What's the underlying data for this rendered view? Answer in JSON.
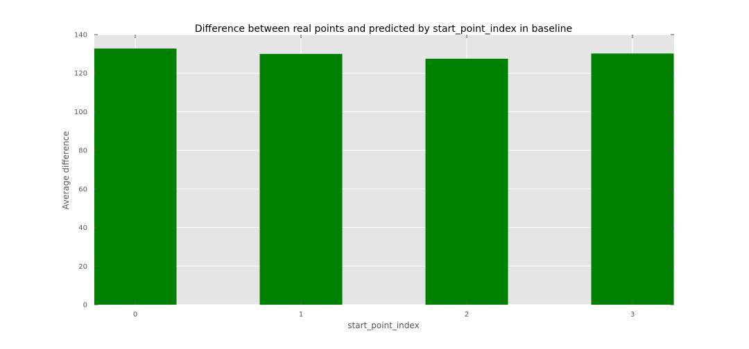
{
  "chart_data": {
    "type": "bar",
    "title": "Difference between real points and predicted by start_point_index in baseline",
    "xlabel": "start_point_index",
    "ylabel": "Average difference",
    "categories": [
      "0",
      "1",
      "2",
      "3"
    ],
    "values": [
      132.8,
      130.0,
      127.5,
      130.2
    ],
    "ylim": [
      0,
      140
    ],
    "yticks": [
      "0",
      "20",
      "40",
      "60",
      "80",
      "100",
      "120",
      "140"
    ],
    "grid": true,
    "colors": {
      "bar": "#008000",
      "plot_background": "#e5e5e5",
      "grid": "#ffffff"
    }
  }
}
